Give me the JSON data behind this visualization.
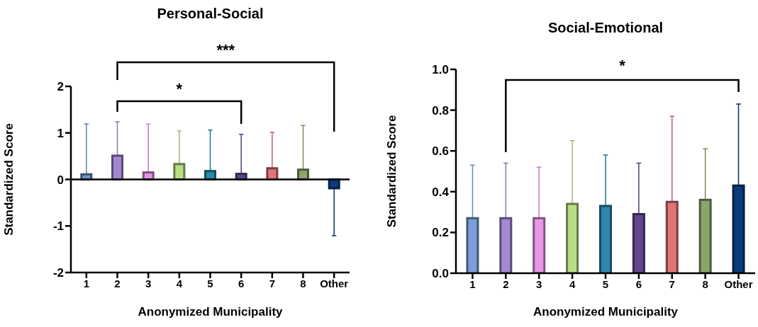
{
  "chart_data": [
    {
      "type": "bar",
      "title": "Personal-Social",
      "xlabel": "Anonymized Municipality",
      "ylabel": "Standardized Score",
      "categories": [
        "1",
        "2",
        "3",
        "4",
        "5",
        "6",
        "7",
        "8",
        "Other"
      ],
      "values": [
        0.11,
        0.51,
        0.15,
        0.33,
        0.18,
        0.12,
        0.24,
        0.21,
        -0.19
      ],
      "errors": [
        [
          0.11,
          1.19
        ],
        [
          0.51,
          1.24
        ],
        [
          0.15,
          1.19
        ],
        [
          0.33,
          1.04
        ],
        [
          0.18,
          1.06
        ],
        [
          0.12,
          0.97
        ],
        [
          0.24,
          1.01
        ],
        [
          0.21,
          1.16
        ],
        [
          -1.21,
          -0.19
        ]
      ],
      "ref_lines": [
        {
          "axis": "y",
          "value": 0
        }
      ],
      "colors": [
        "#6f93cc",
        "#a487d1",
        "#e891e6",
        "#b9dd83",
        "#2a8aad",
        "#5f4590",
        "#e07377",
        "#8ba56c",
        "#0b3b7a"
      ],
      "ylim": [
        -2,
        2
      ],
      "yticks": [
        -2,
        -1,
        0,
        1,
        2
      ],
      "grid": false,
      "legend": false,
      "annotations": [
        "***",
        "*"
      ]
    },
    {
      "type": "bar",
      "title": "Social-Emotional",
      "xlabel": "Anonymized Municipality",
      "ylabel": "Standardized Score",
      "categories": [
        "1",
        "2",
        "3",
        "4",
        "5",
        "6",
        "7",
        "8",
        "Other"
      ],
      "values": [
        0.27,
        0.27,
        0.27,
        0.34,
        0.33,
        0.29,
        0.35,
        0.36,
        0.43
      ],
      "errors": [
        [
          0.27,
          0.53
        ],
        [
          0.27,
          0.54
        ],
        [
          0.27,
          0.52
        ],
        [
          0.34,
          0.65
        ],
        [
          0.33,
          0.58
        ],
        [
          0.29,
          0.54
        ],
        [
          0.35,
          0.77
        ],
        [
          0.36,
          0.61
        ],
        [
          0.43,
          0.83
        ]
      ],
      "colors": [
        "#7b9fd6",
        "#a38ad3",
        "#e996e8",
        "#bade86",
        "#2e88ad",
        "#634590",
        "#df7479",
        "#8ba56d",
        "#0a3b7a"
      ],
      "ylim": [
        0,
        1
      ],
      "yticks": [
        {
          "value": 0,
          "label": "0.0"
        },
        {
          "value": 0.2,
          "label": "0.2"
        },
        {
          "value": 0.4,
          "label": "0.4"
        },
        {
          "value": 0.6,
          "label": "0.6"
        },
        {
          "value": 0.8,
          "label": "0.8"
        },
        {
          "value": 1,
          "label": "1.0"
        }
      ],
      "grid": false,
      "legend": false,
      "annotations": [
        "*"
      ]
    }
  ]
}
